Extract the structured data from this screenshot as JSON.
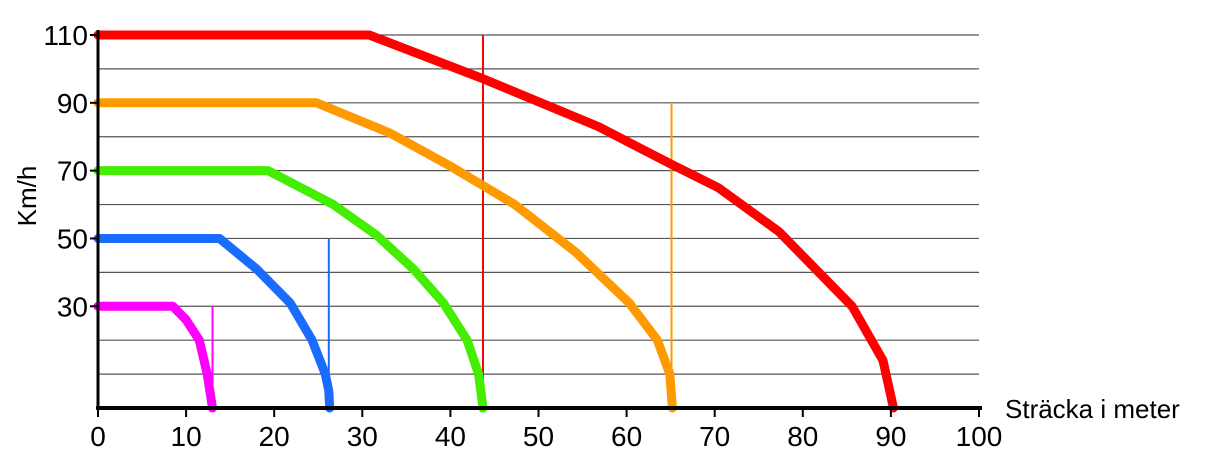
{
  "chart_data": {
    "type": "line",
    "title": "",
    "xlabel": "Sträcka i meter",
    "ylabel": "Km/h",
    "xlim": [
      0,
      100
    ],
    "ylim": [
      0,
      110
    ],
    "x_ticks": [
      0,
      10,
      20,
      30,
      40,
      50,
      60,
      70,
      80,
      90,
      100
    ],
    "x_tick_labels": [
      "0",
      "10",
      "20",
      "30",
      "40",
      "50",
      "60",
      "70",
      "80",
      "90",
      "100"
    ],
    "y_ticks": [
      30,
      50,
      70,
      90,
      110
    ],
    "y_tick_labels": [
      "30",
      "50",
      "70",
      "90",
      "110"
    ],
    "y_gridlines": [
      10,
      20,
      30,
      40,
      50,
      60,
      70,
      80,
      90,
      100,
      110
    ],
    "grid": "horizontal",
    "legend": "none",
    "series": [
      {
        "color": "#ff00ff",
        "points": [
          [
            0,
            30
          ],
          [
            8.5,
            30
          ],
          [
            10,
            26
          ],
          [
            11.5,
            20
          ],
          [
            12.4,
            10
          ],
          [
            13,
            0
          ]
        ],
        "reaction_line_x": 13
      },
      {
        "color": "#1a6cff",
        "points": [
          [
            0,
            50
          ],
          [
            13.8,
            50
          ],
          [
            18,
            41
          ],
          [
            21.8,
            31
          ],
          [
            24.3,
            20
          ],
          [
            25.8,
            10
          ],
          [
            26.2,
            5
          ],
          [
            26.3,
            0
          ]
        ],
        "reaction_line_x": 26.2
      },
      {
        "color": "#44ee00",
        "points": [
          [
            0,
            70
          ],
          [
            19.3,
            70
          ],
          [
            26.7,
            60
          ],
          [
            31.6,
            51
          ],
          [
            35.8,
            41
          ],
          [
            39.2,
            31
          ],
          [
            41.9,
            20
          ],
          [
            43.2,
            10
          ],
          [
            43.7,
            0
          ]
        ],
        "reaction_line_x": 43.7
      },
      {
        "color": "#ff9900",
        "points": [
          [
            0,
            90
          ],
          [
            24.8,
            90
          ],
          [
            33.2,
            81
          ],
          [
            40.2,
            71
          ],
          [
            47.3,
            60
          ],
          [
            54.2,
            46
          ],
          [
            60.3,
            31
          ],
          [
            63.5,
            20
          ],
          [
            64.9,
            10
          ],
          [
            65.2,
            0
          ]
        ],
        "reaction_line_x": 65.1
      },
      {
        "color": "#ff0000",
        "points": [
          [
            0,
            110
          ],
          [
            30.8,
            110
          ],
          [
            43.8,
            97
          ],
          [
            56.8,
            83
          ],
          [
            65,
            72
          ],
          [
            70.4,
            65
          ],
          [
            77.3,
            52
          ],
          [
            85.6,
            30
          ],
          [
            89.1,
            14
          ],
          [
            90.3,
            0
          ]
        ],
        "reaction_line_x": 43.7
      }
    ]
  }
}
